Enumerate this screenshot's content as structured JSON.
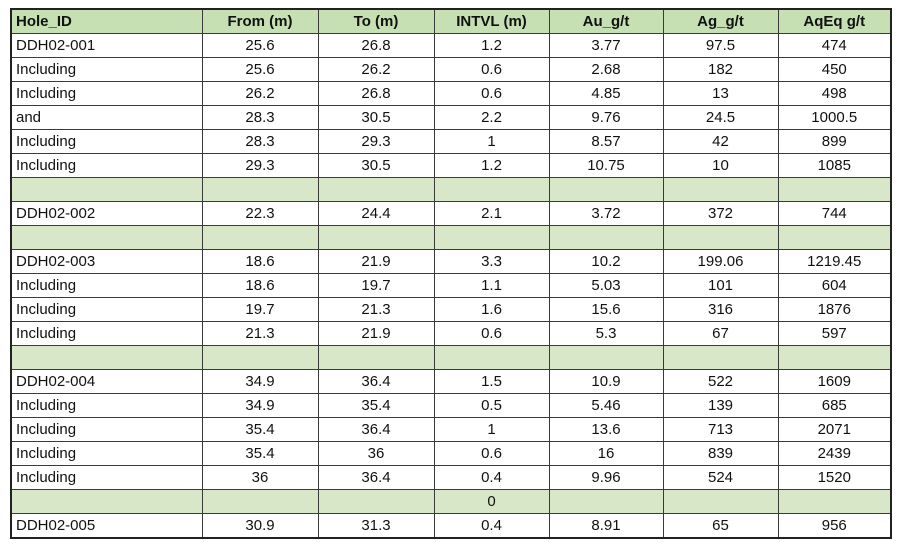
{
  "table": {
    "headers": [
      "Hole_ID",
      "From (m)",
      "To (m)",
      "INTVL (m)",
      "Au_g/t",
      "Ag_g/t",
      "AqEq g/t"
    ],
    "rows": [
      {
        "type": "data",
        "cells": [
          "DDH02-001",
          "25.6",
          "26.8",
          "1.2",
          "3.77",
          "97.5",
          "474"
        ]
      },
      {
        "type": "data",
        "cells": [
          "Including",
          "25.6",
          "26.2",
          "0.6",
          "2.68",
          "182",
          "450"
        ]
      },
      {
        "type": "data",
        "cells": [
          "Including",
          "26.2",
          "26.8",
          "0.6",
          "4.85",
          "13",
          "498"
        ]
      },
      {
        "type": "data",
        "cells": [
          "and",
          "28.3",
          "30.5",
          "2.2",
          "9.76",
          "24.5",
          "1000.5"
        ]
      },
      {
        "type": "data",
        "cells": [
          "Including",
          "28.3",
          "29.3",
          "1",
          "8.57",
          "42",
          "899"
        ]
      },
      {
        "type": "data",
        "cells": [
          "Including",
          "29.3",
          "30.5",
          "1.2",
          "10.75",
          "10",
          "1085"
        ]
      },
      {
        "type": "spacer",
        "cells": [
          "",
          "",
          "",
          "",
          "",
          "",
          ""
        ]
      },
      {
        "type": "data",
        "cells": [
          "DDH02-002",
          "22.3",
          "24.4",
          "2.1",
          "3.72",
          "372",
          "744"
        ]
      },
      {
        "type": "spacer",
        "cells": [
          "",
          "",
          "",
          "",
          "",
          "",
          ""
        ]
      },
      {
        "type": "data",
        "cells": [
          "DDH02-003",
          "18.6",
          "21.9",
          "3.3",
          "10.2",
          "199.06",
          "1219.45"
        ]
      },
      {
        "type": "data",
        "cells": [
          "Including",
          "18.6",
          "19.7",
          "1.1",
          "5.03",
          "101",
          "604"
        ]
      },
      {
        "type": "data",
        "cells": [
          "Including",
          "19.7",
          "21.3",
          "1.6",
          "15.6",
          "316",
          "1876"
        ]
      },
      {
        "type": "data",
        "cells": [
          "Including",
          "21.3",
          "21.9",
          "0.6",
          "5.3",
          "67",
          "597"
        ]
      },
      {
        "type": "spacer",
        "cells": [
          "",
          "",
          "",
          "",
          "",
          "",
          ""
        ]
      },
      {
        "type": "data",
        "cells": [
          "DDH02-004",
          "34.9",
          "36.4",
          "1.5",
          "10.9",
          "522",
          "1609"
        ]
      },
      {
        "type": "data",
        "cells": [
          "Including",
          "34.9",
          "35.4",
          "0.5",
          "5.46",
          "139",
          "685"
        ]
      },
      {
        "type": "data",
        "cells": [
          "Including",
          "35.4",
          "36.4",
          "1",
          "13.6",
          "713",
          "2071"
        ]
      },
      {
        "type": "data",
        "cells": [
          "Including",
          "35.4",
          "36",
          "0.6",
          "16",
          "839",
          "2439"
        ]
      },
      {
        "type": "data",
        "cells": [
          "Including",
          "36",
          "36.4",
          "0.4",
          "9.96",
          "524",
          "1520"
        ]
      },
      {
        "type": "spacer",
        "cells": [
          "",
          "",
          "",
          "0",
          "",
          "",
          ""
        ]
      },
      {
        "type": "data",
        "cells": [
          "DDH02-005",
          "30.9",
          "31.3",
          "0.4",
          "8.91",
          "65",
          "956"
        ]
      }
    ]
  }
}
